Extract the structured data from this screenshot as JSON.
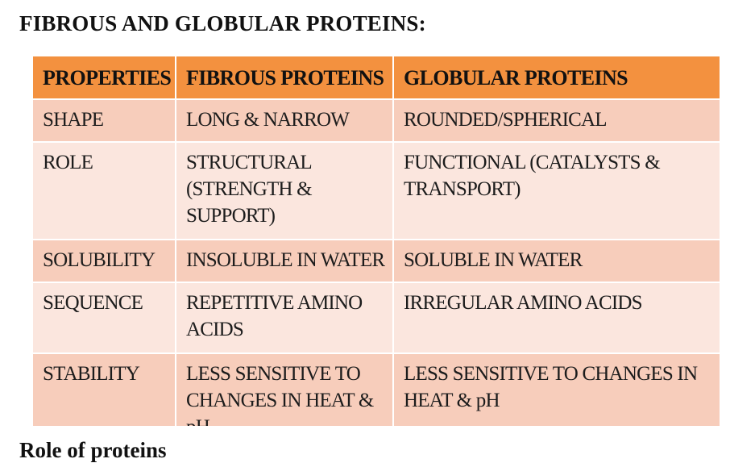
{
  "heading": "FIBROUS AND GLOBULAR PROTEINS:",
  "table": {
    "headers": [
      "PROPERTIES",
      "FIBROUS PROTEINS",
      "GLOBULAR PROTEINS"
    ],
    "rows": [
      [
        "SHAPE",
        "LONG & NARROW",
        "ROUNDED/SPHERICAL"
      ],
      [
        "ROLE",
        "STRUCTURAL (STRENGTH & SUPPORT)",
        "FUNCTIONAL (CATALYSTS & TRANSPORT)"
      ],
      [
        "SOLUBILITY",
        "INSOLUBLE IN WATER",
        "SOLUBLE IN WATER"
      ],
      [
        "SEQUENCE",
        "REPETITIVE AMINO ACIDS",
        "IRREGULAR AMINO ACIDS"
      ],
      [
        "STABILITY",
        "LESS SENSITIVE TO CHANGES IN HEAT & pH",
        "LESS SENSITIVE TO CHANGES IN HEAT & pH"
      ]
    ]
  },
  "bottom_text": "Role of proteins"
}
